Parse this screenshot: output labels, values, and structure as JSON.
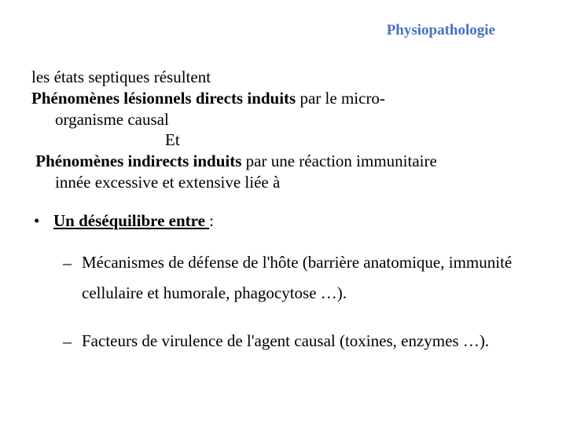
{
  "colors": {
    "title": "#4472c4",
    "body": "#000000",
    "background": "#ffffff"
  },
  "typography": {
    "title_fontsize": 19,
    "body_fontsize": 21,
    "font_family": "Times New Roman"
  },
  "title": "Physiopathologie",
  "line1": "les états septiques résultent",
  "line2_bold": "Phénomènes lésionnels directs induits",
  "line2_rest": " par le micro-",
  "line3": "organisme causal",
  "et": "Et",
  "line4_bold": "Phénomènes indirects induits ",
  "line4_rest": "par une réaction immunitaire",
  "line5": "innée excessive et extensive liée à",
  "bullet1_marker": "•",
  "bullet1_text": "Un déséquilibre entre ",
  "bullet1_colon": ":",
  "sub_marker": "–",
  "sub1": "Mécanismes de défense de l'hôte (barrière anatomique, immunité cellulaire et humorale, phagocytose …).",
  "sub2": "Facteurs de virulence de l'agent causal (toxines, enzymes …)."
}
